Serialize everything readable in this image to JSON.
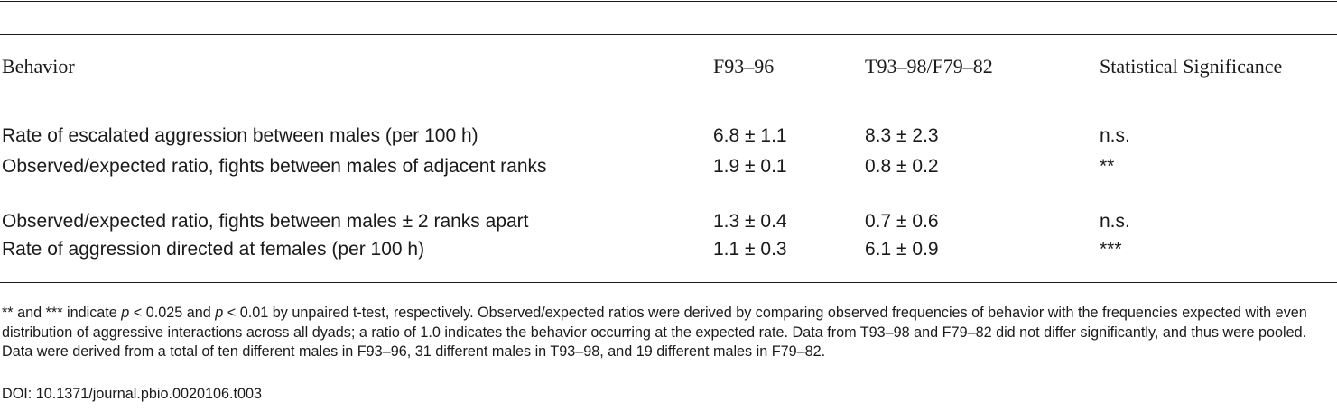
{
  "table": {
    "headers": [
      "Behavior",
      "F93–96",
      "T93–98/F79–82",
      "Statistical Significance"
    ],
    "rows": [
      {
        "behavior": "Rate of escalated aggression between males (per 100 h)",
        "f93_96": "6.8 ± 1.1",
        "t93_98_f79_82": "8.3 ± 2.3",
        "significance": "n.s."
      },
      {
        "behavior": "Observed/expected ratio, fights between males of adjacent ranks",
        "f93_96": "1.9 ± 0.1",
        "t93_98_f79_82": "0.8 ± 0.2",
        "significance": "**"
      },
      {
        "behavior": "Observed/expected ratio, fights between males ± 2 ranks apart",
        "f93_96": "1.3 ± 0.4",
        "t93_98_f79_82": "0.7 ± 0.6",
        "significance": "n.s."
      },
      {
        "behavior": "Rate of aggression directed at females (per 100 h)",
        "f93_96": "1.1 ± 0.3",
        "t93_98_f79_82": "6.1 ± 0.9",
        "significance": "***"
      }
    ]
  },
  "footnote": {
    "part1": "** and *** indicate ",
    "p_symbol_1": "p",
    "part2": " < 0.025 and ",
    "p_symbol_2": "p",
    "part3": " < 0.01 by unpaired t-test, respectively. Observed/expected ratios were derived by comparing observed frequencies of behavior with the frequencies expected with even distribution of aggressive interactions across all dyads; a ratio of 1.0 indicates the behavior occurring at the expected rate. Data from T93–98 and F79–82 did not differ significantly, and thus were pooled. Data were derived from a total of ten different males in F93–96, 31 different males in T93–98, and 19 different males in F79–82."
  },
  "doi": "DOI: 10.1371/journal.pbio.0020106.t003"
}
